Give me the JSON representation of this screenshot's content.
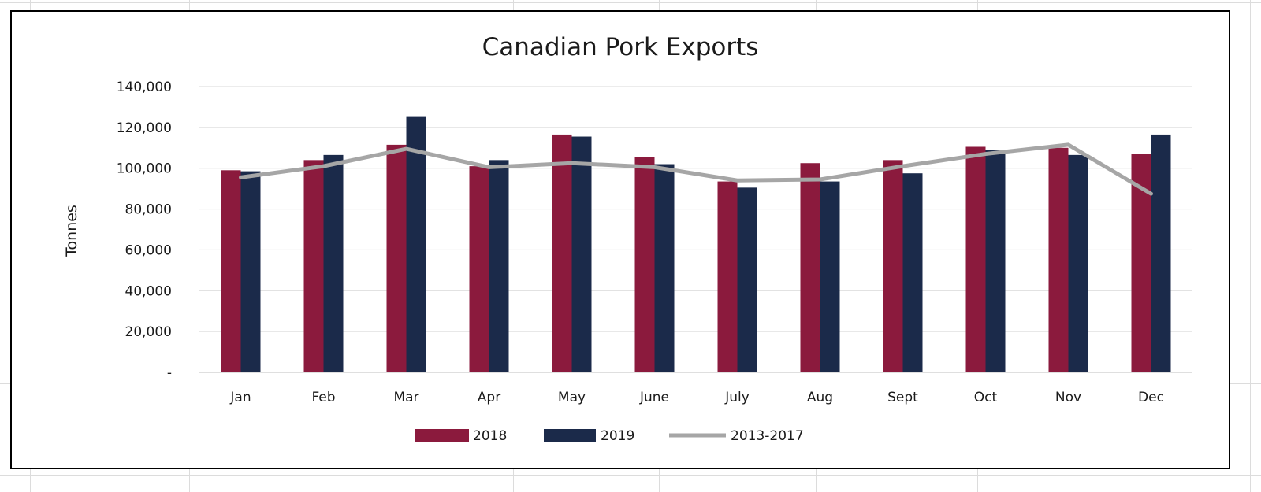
{
  "chart_data": {
    "type": "bar",
    "title": "Canadian Pork Exports",
    "xlabel": "",
    "ylabel": "Tonnes",
    "ylim": [
      0,
      140000
    ],
    "yticks": [
      0,
      20000,
      40000,
      60000,
      80000,
      100000,
      120000,
      140000
    ],
    "ytick_labels": [
      "-",
      "20,000",
      "40,000",
      "60,000",
      "80,000",
      "100,000",
      "120,000",
      "140,000"
    ],
    "categories": [
      "Jan",
      "Feb",
      "Mar",
      "Apr",
      "May",
      "June",
      "July",
      "Aug",
      "Sept",
      "Oct",
      "Nov",
      "Dec"
    ],
    "series": [
      {
        "name": "2018",
        "type": "bar",
        "color": "#8b1a3d",
        "values": [
          99000,
          104000,
          111500,
          101000,
          116500,
          105500,
          93500,
          102500,
          104000,
          110500,
          110000,
          107000
        ]
      },
      {
        "name": "2019",
        "type": "bar",
        "color": "#1b2a4a",
        "values": [
          98500,
          106500,
          125500,
          104000,
          115500,
          102000,
          90500,
          93500,
          97500,
          109000,
          106500,
          116500
        ]
      },
      {
        "name": "2013-2017",
        "type": "line",
        "color": "#a6a6a6",
        "values": [
          95500,
          101000,
          109500,
          100500,
          102500,
          100500,
          94000,
          94500,
          101000,
          107000,
          111500,
          87500
        ]
      }
    ],
    "grid": true,
    "legend_position": "bottom"
  }
}
